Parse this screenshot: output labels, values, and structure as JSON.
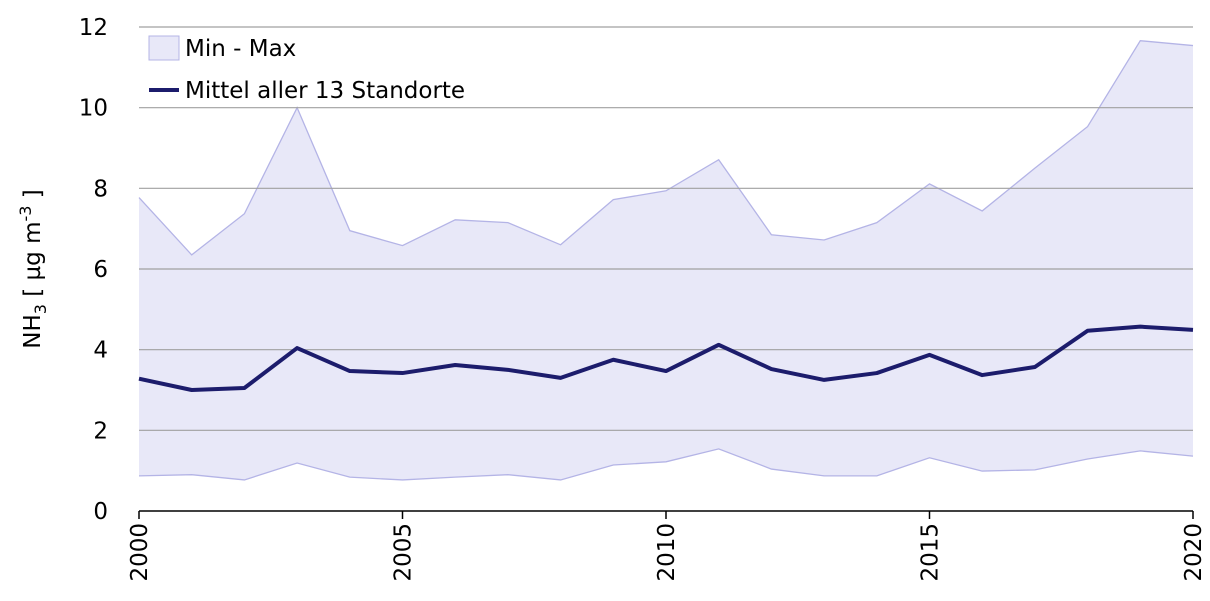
{
  "chart_data": {
    "type": "line",
    "ylabel": {
      "base": "NH",
      "sub": "3",
      "mid": " [ µg m",
      "sup": "-3",
      "end": " ]"
    },
    "x": [
      2000,
      2001,
      2002,
      2003,
      2004,
      2005,
      2006,
      2007,
      2008,
      2009,
      2010,
      2011,
      2012,
      2013,
      2014,
      2015,
      2016,
      2017,
      2018,
      2019,
      2020
    ],
    "series": [
      {
        "name": "Min - Max",
        "kind": "band",
        "color": "#e8e8f8",
        "edge_color": "#b4b4e6",
        "lower": [
          0.87,
          0.9,
          0.77,
          1.19,
          0.84,
          0.77,
          0.84,
          0.9,
          0.77,
          1.14,
          1.22,
          1.54,
          1.04,
          0.87,
          0.87,
          1.32,
          0.99,
          1.02,
          1.29,
          1.49,
          1.36
        ],
        "upper": [
          7.77,
          6.35,
          7.37,
          10.0,
          6.95,
          6.58,
          7.22,
          7.15,
          6.6,
          7.72,
          7.94,
          8.71,
          6.85,
          6.72,
          7.15,
          8.11,
          7.44,
          8.5,
          9.53,
          11.66,
          11.54
        ]
      },
      {
        "name": "Mittel aller 13 Standorte",
        "color": "#1c1c6c",
        "values": [
          3.28,
          3.0,
          3.05,
          4.04,
          3.47,
          3.42,
          3.62,
          3.5,
          3.3,
          3.75,
          3.47,
          4.12,
          3.52,
          3.25,
          3.42,
          3.87,
          3.37,
          3.57,
          4.47,
          4.57,
          4.49
        ]
      }
    ],
    "xlim": [
      2000,
      2020
    ],
    "xticks": [
      2000,
      2005,
      2010,
      2015,
      2020
    ],
    "ylim": [
      0,
      12
    ],
    "yticks": [
      0,
      2,
      4,
      6,
      8,
      10,
      12
    ],
    "grid": true,
    "legend": "upper left"
  }
}
